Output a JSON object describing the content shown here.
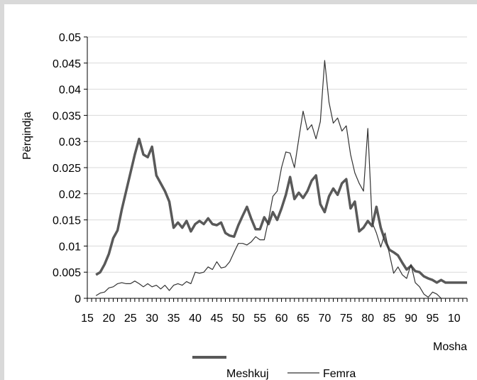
{
  "chart_data": {
    "type": "line",
    "ylabel": "Përqindja",
    "xlabel": "Mosha",
    "ylim": [
      0,
      0.05
    ],
    "y_ticks": [
      "0",
      "0.005",
      "0.01",
      "0.015",
      "0.02",
      "0.025",
      "0.03",
      "0.035",
      "0.04",
      "0.045",
      "0.05"
    ],
    "x_ticks": [
      "15",
      "20",
      "25",
      "30",
      "35",
      "40",
      "45",
      "50",
      "55",
      "60",
      "65",
      "70",
      "75",
      "80",
      "85",
      "90",
      "95",
      "10"
    ],
    "x_start": 15,
    "x_end": 103,
    "grid": true,
    "legend_position": "bottom",
    "colors": {
      "meshkuj": "#595959",
      "femra": "#333333",
      "grid": "#d9d9d9"
    },
    "series": [
      {
        "name": "Meshkuj",
        "x": [
          17,
          18,
          19,
          20,
          21,
          22,
          23,
          24,
          25,
          26,
          27,
          28,
          29,
          30,
          31,
          32,
          33,
          34,
          35,
          36,
          37,
          38,
          39,
          40,
          41,
          42,
          43,
          44,
          45,
          46,
          47,
          48,
          49,
          50,
          51,
          52,
          53,
          54,
          55,
          56,
          57,
          58,
          59,
          60,
          61,
          62,
          63,
          64,
          65,
          66,
          67,
          68,
          69,
          70,
          71,
          72,
          73,
          74,
          75,
          76,
          77,
          78,
          79,
          80,
          81,
          82,
          83,
          84,
          85,
          86,
          87,
          88,
          89,
          90,
          91,
          92,
          93,
          94,
          95,
          96,
          97,
          98,
          99,
          100,
          101,
          102,
          103
        ],
        "values": [
          0.0045,
          0.005,
          0.0065,
          0.0085,
          0.0115,
          0.013,
          0.017,
          0.0205,
          0.024,
          0.0275,
          0.0305,
          0.0275,
          0.027,
          0.029,
          0.0235,
          0.022,
          0.0205,
          0.0185,
          0.0135,
          0.0145,
          0.0135,
          0.0148,
          0.0128,
          0.0142,
          0.0148,
          0.0142,
          0.0153,
          0.0142,
          0.014,
          0.0145,
          0.0125,
          0.012,
          0.0118,
          0.014,
          0.0158,
          0.0175,
          0.0152,
          0.0132,
          0.0132,
          0.0155,
          0.0142,
          0.0165,
          0.015,
          0.0172,
          0.0198,
          0.0232,
          0.019,
          0.0202,
          0.0192,
          0.0205,
          0.0225,
          0.0235,
          0.018,
          0.0165,
          0.0195,
          0.021,
          0.0198,
          0.022,
          0.0228,
          0.0172,
          0.0185,
          0.0128,
          0.0135,
          0.0148,
          0.0138,
          0.0175,
          0.0135,
          0.011,
          0.0093,
          0.0088,
          0.0082,
          0.0068,
          0.0055,
          0.0062,
          0.0052,
          0.005,
          0.0042,
          0.0038,
          0.0035,
          0.003,
          0.0035,
          0.003,
          0.003,
          0.003,
          0.003,
          0.003,
          0.003
        ]
      },
      {
        "name": "Femra",
        "x": [
          17,
          18,
          19,
          20,
          21,
          22,
          23,
          24,
          25,
          26,
          27,
          28,
          29,
          30,
          31,
          32,
          33,
          34,
          35,
          36,
          37,
          38,
          39,
          40,
          41,
          42,
          43,
          44,
          45,
          46,
          47,
          48,
          49,
          50,
          51,
          52,
          53,
          54,
          55,
          56,
          57,
          58,
          59,
          60,
          61,
          62,
          63,
          64,
          65,
          66,
          67,
          68,
          69,
          70,
          71,
          72,
          73,
          74,
          75,
          76,
          77,
          78,
          79,
          80,
          81,
          82,
          83,
          84,
          85,
          86,
          87,
          88,
          89,
          90,
          91,
          92,
          93,
          94,
          95,
          96,
          97,
          98,
          99,
          100,
          101,
          102,
          103
        ],
        "values": [
          0.0005,
          0.001,
          0.0012,
          0.002,
          0.0022,
          0.0028,
          0.003,
          0.0028,
          0.0028,
          0.0033,
          0.0028,
          0.0022,
          0.0028,
          0.0022,
          0.0025,
          0.0018,
          0.0025,
          0.0015,
          0.0025,
          0.0028,
          0.0025,
          0.0032,
          0.0028,
          0.005,
          0.0048,
          0.005,
          0.006,
          0.0055,
          0.007,
          0.0058,
          0.006,
          0.007,
          0.0088,
          0.0105,
          0.0105,
          0.0102,
          0.0108,
          0.0118,
          0.0112,
          0.0112,
          0.015,
          0.0195,
          0.0205,
          0.025,
          0.028,
          0.0278,
          0.025,
          0.0305,
          0.0358,
          0.0322,
          0.0332,
          0.0305,
          0.0338,
          0.0455,
          0.0375,
          0.0335,
          0.0345,
          0.032,
          0.033,
          0.0275,
          0.024,
          0.022,
          0.0205,
          0.0325,
          0.0145,
          0.0125,
          0.0098,
          0.0125,
          0.0085,
          0.0048,
          0.006,
          0.0045,
          0.0038,
          0.0065,
          0.003,
          0.0022,
          0.0008,
          0.0002,
          0.0012,
          0.0008,
          0.0,
          0.0,
          0.0,
          0.0,
          0.0,
          0.0,
          0.0
        ]
      }
    ]
  }
}
